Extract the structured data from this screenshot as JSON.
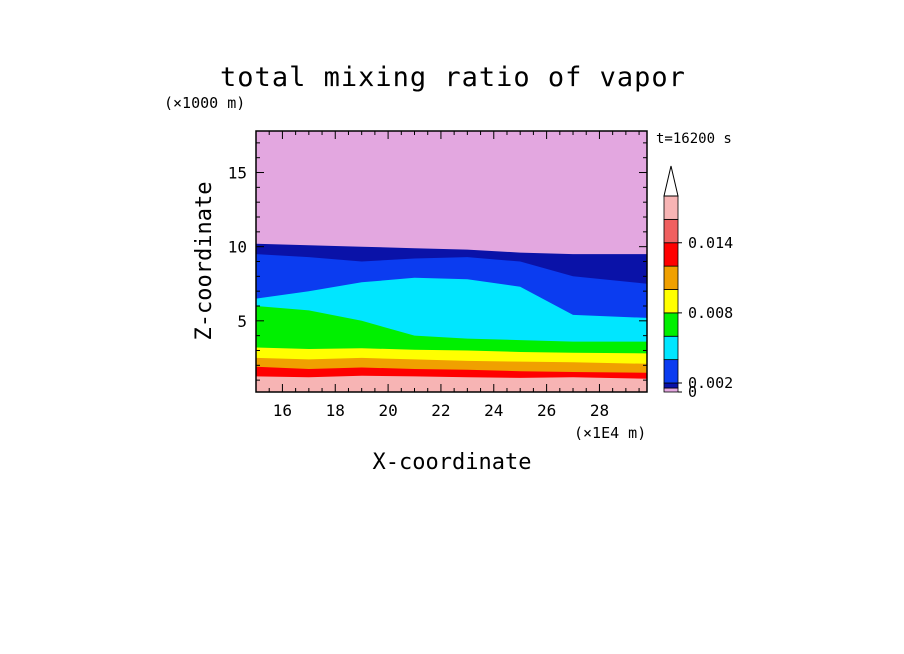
{
  "chart_data": {
    "type": "heatmap",
    "title": "total mixing ratio of vapor",
    "xlabel": "X-coordinate",
    "ylabel": "Z-coordinate",
    "x_unit": "(×1E4 m)",
    "y_unit": "(×1000 m)",
    "time_label": "t=16200 s",
    "xlim": [
      15.0,
      29.8
    ],
    "ylim": [
      0.2,
      17.8
    ],
    "x_ticks": [
      16,
      18,
      20,
      22,
      24,
      26,
      28
    ],
    "y_ticks": [
      5,
      10,
      15
    ],
    "colorbar": {
      "levels": [
        0,
        0.0005,
        0.002,
        0.004,
        0.006,
        0.008,
        0.01,
        0.012,
        0.014,
        0.016
      ],
      "colors": [
        "#e3a7e0",
        "#0a12a8",
        "#0b3cf0",
        "#00e6ff",
        "#00f000",
        "#ffff00",
        "#f0a000",
        "#ff0000",
        "#f06060",
        "#f7b4b4"
      ],
      "tick_labels": [
        {
          "value": 0,
          "label": "0"
        },
        {
          "value": 0.002,
          "label": "0.002"
        },
        {
          "value": 0.008,
          "label": "0.008"
        },
        {
          "value": 0.014,
          "label": "0.014"
        }
      ],
      "extend": "max"
    },
    "contour_tops": [
      {
        "color": "#f7b4b4",
        "z": [
          1.25,
          1.2,
          1.3,
          1.25,
          1.2,
          1.15,
          1.2,
          1.1
        ]
      },
      {
        "color": "#ff0000",
        "z": [
          1.9,
          1.75,
          1.85,
          1.75,
          1.7,
          1.6,
          1.55,
          1.5
        ]
      },
      {
        "color": "#f0a000",
        "z": [
          2.5,
          2.4,
          2.5,
          2.4,
          2.3,
          2.25,
          2.2,
          2.1
        ]
      },
      {
        "color": "#ffff00",
        "z": [
          3.2,
          3.1,
          3.15,
          3.05,
          3.0,
          2.9,
          2.85,
          2.8
        ]
      },
      {
        "color": "#00f000",
        "z": [
          6.0,
          5.7,
          5.0,
          4.0,
          3.8,
          3.7,
          3.6,
          3.6
        ]
      },
      {
        "color": "#00e6ff",
        "z": [
          6.5,
          7.0,
          7.6,
          7.9,
          7.8,
          7.3,
          5.4,
          5.2
        ]
      },
      {
        "color": "#0b3cf0",
        "z": [
          9.5,
          9.3,
          9.0,
          9.2,
          9.3,
          9.0,
          8.0,
          7.5
        ]
      },
      {
        "color": "#0a12a8",
        "z": [
          10.2,
          10.1,
          10.0,
          9.9,
          9.8,
          9.6,
          9.5,
          9.5
        ]
      }
    ],
    "contour_x": [
      15.0,
      17.0,
      19.0,
      21.0,
      23.0,
      25.0,
      27.0,
      29.8
    ]
  }
}
